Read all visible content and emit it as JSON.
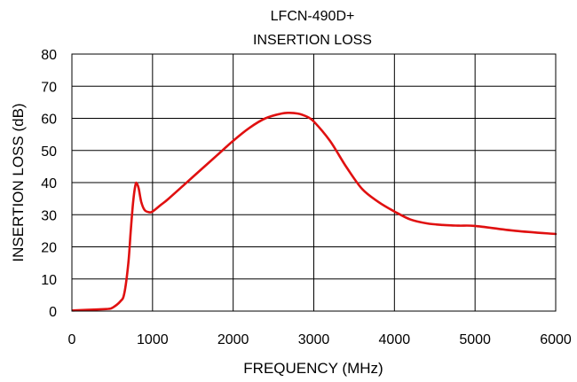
{
  "chart_data": {
    "type": "line",
    "title": [
      "LFCN-490D+",
      "INSERTION LOSS"
    ],
    "xlabel": "FREQUENCY (MHz)",
    "ylabel": "INSERTION LOSS (dB)",
    "xlim": [
      0,
      6000
    ],
    "ylim": [
      0,
      80
    ],
    "xticks": [
      0,
      1000,
      2000,
      3000,
      4000,
      5000,
      6000
    ],
    "yticks": [
      0,
      10,
      20,
      30,
      40,
      50,
      60,
      70,
      80
    ],
    "grid": true,
    "line_color": "#e01010",
    "series": [
      {
        "x": [
          10,
          200,
          400,
          450,
          500,
          600,
          650,
          700,
          730,
          760,
          790,
          810,
          830,
          860,
          900,
          950,
          1000,
          1100,
          1200,
          1400,
          1600,
          1800,
          2000,
          2200,
          2400,
          2600,
          2700,
          2800,
          2900,
          3000,
          3200,
          3400,
          3600,
          3800,
          4000,
          4200,
          4400,
          4600,
          4800,
          5000,
          5500,
          6000
        ],
        "y": [
          0.2,
          0.4,
          0.6,
          0.7,
          1.0,
          3.0,
          5.5,
          15,
          25,
          34,
          39.5,
          39.5,
          38,
          34,
          31.5,
          30.8,
          31,
          33,
          35,
          39.5,
          44,
          48.5,
          53,
          57,
          60,
          61.5,
          61.7,
          61.5,
          60.7,
          59,
          53,
          45,
          38,
          34,
          31,
          28.5,
          27.3,
          26.8,
          26.6,
          26.5,
          25,
          24
        ]
      }
    ]
  }
}
